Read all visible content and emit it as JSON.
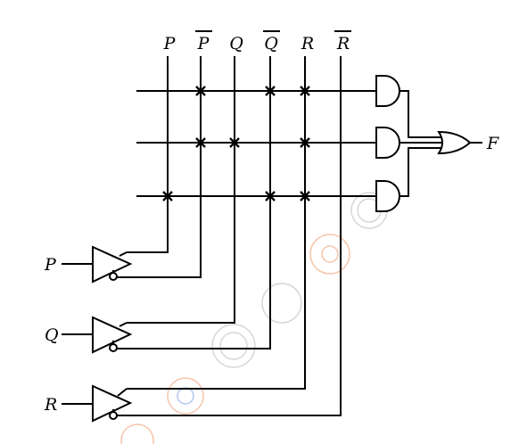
{
  "column_labels": [
    "P",
    "P",
    "Q",
    "Q",
    "R",
    "R"
  ],
  "column_complemented": [
    false,
    true,
    false,
    true,
    false,
    true
  ],
  "input_labels": [
    "P",
    "Q",
    "R"
  ],
  "output_label": "F",
  "product_terms": [
    [
      "P'",
      "Q'",
      "R"
    ],
    [
      "P'",
      "Q",
      "R"
    ],
    [
      "P",
      "Q'",
      "R"
    ]
  ],
  "connection_points": [
    {
      "row": 1,
      "column": "P'"
    },
    {
      "row": 1,
      "column": "Q'"
    },
    {
      "row": 1,
      "column": "R"
    },
    {
      "row": 2,
      "column": "P'"
    },
    {
      "row": 2,
      "column": "Q"
    },
    {
      "row": 2,
      "column": "R"
    },
    {
      "row": 3,
      "column": "P"
    },
    {
      "row": 3,
      "column": "Q'"
    },
    {
      "row": 3,
      "column": "R"
    }
  ],
  "colors": {
    "line": "#000000",
    "watermark_gray": "#9a9a9a",
    "watermark_orange": "#e8702a"
  }
}
